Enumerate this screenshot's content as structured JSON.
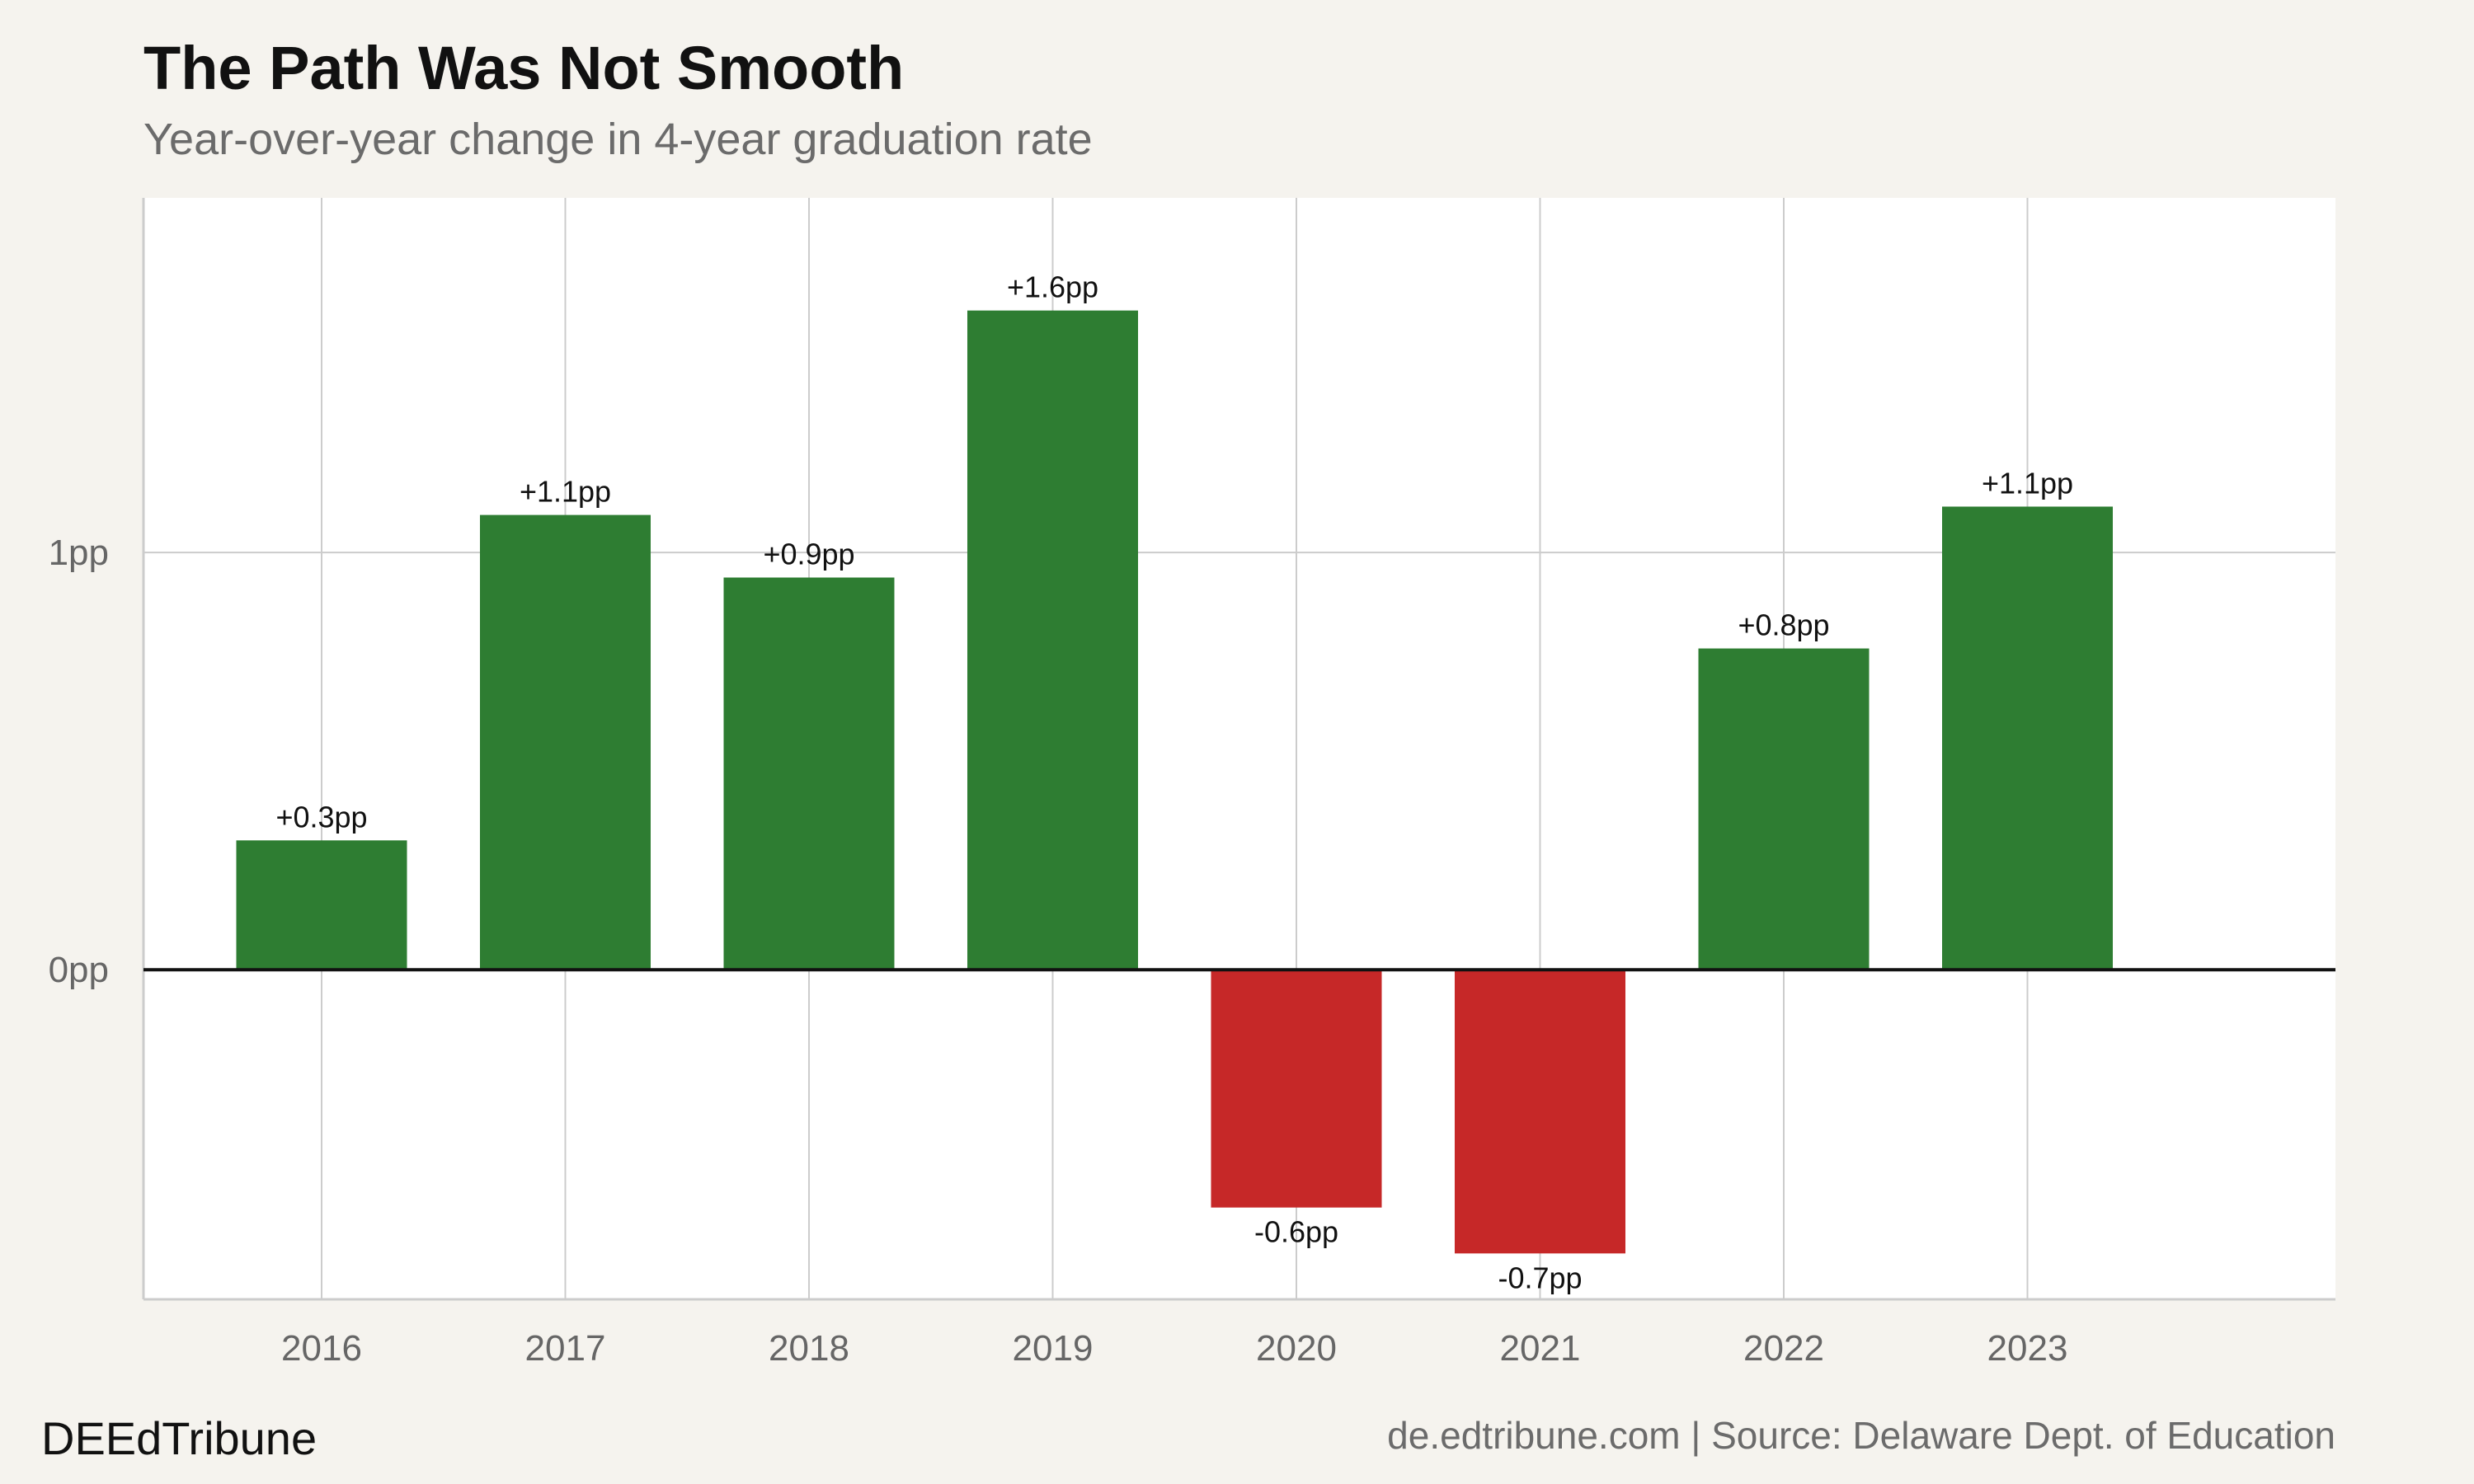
{
  "chart_data": {
    "type": "bar",
    "title": "The Path Was Not Smooth",
    "subtitle": "Year-over-year change in 4-year graduation rate",
    "categories": [
      "2016",
      "2017",
      "2018",
      "2019",
      "2020",
      "2021",
      "2022",
      "2023"
    ],
    "values": [
      0.31,
      1.09,
      0.94,
      1.58,
      -0.57,
      -0.68,
      0.77,
      1.11
    ],
    "value_labels": [
      "+0.3pp",
      "+1.1pp",
      "+0.9pp",
      "+1.6pp",
      "-0.6pp",
      "-0.7pp",
      "+0.8pp",
      "+1.1pp"
    ],
    "xlabel": "",
    "ylabel": "",
    "y_ticks": [
      0,
      1
    ],
    "y_tick_labels": [
      "0pp",
      "1pp"
    ],
    "ylim": [
      -0.79,
      1.85
    ],
    "grid": true,
    "legend": "none"
  },
  "colors": {
    "positive": "#2e7d32",
    "negative": "#c62828",
    "background": "#f5f3ee",
    "panel": "#ffffff",
    "grid": "#cccccc",
    "zero_line": "#111111"
  },
  "footer": {
    "brand": "DEEdTribune",
    "source": "de.edtribune.com | Source: Delaware Dept. of Education"
  }
}
